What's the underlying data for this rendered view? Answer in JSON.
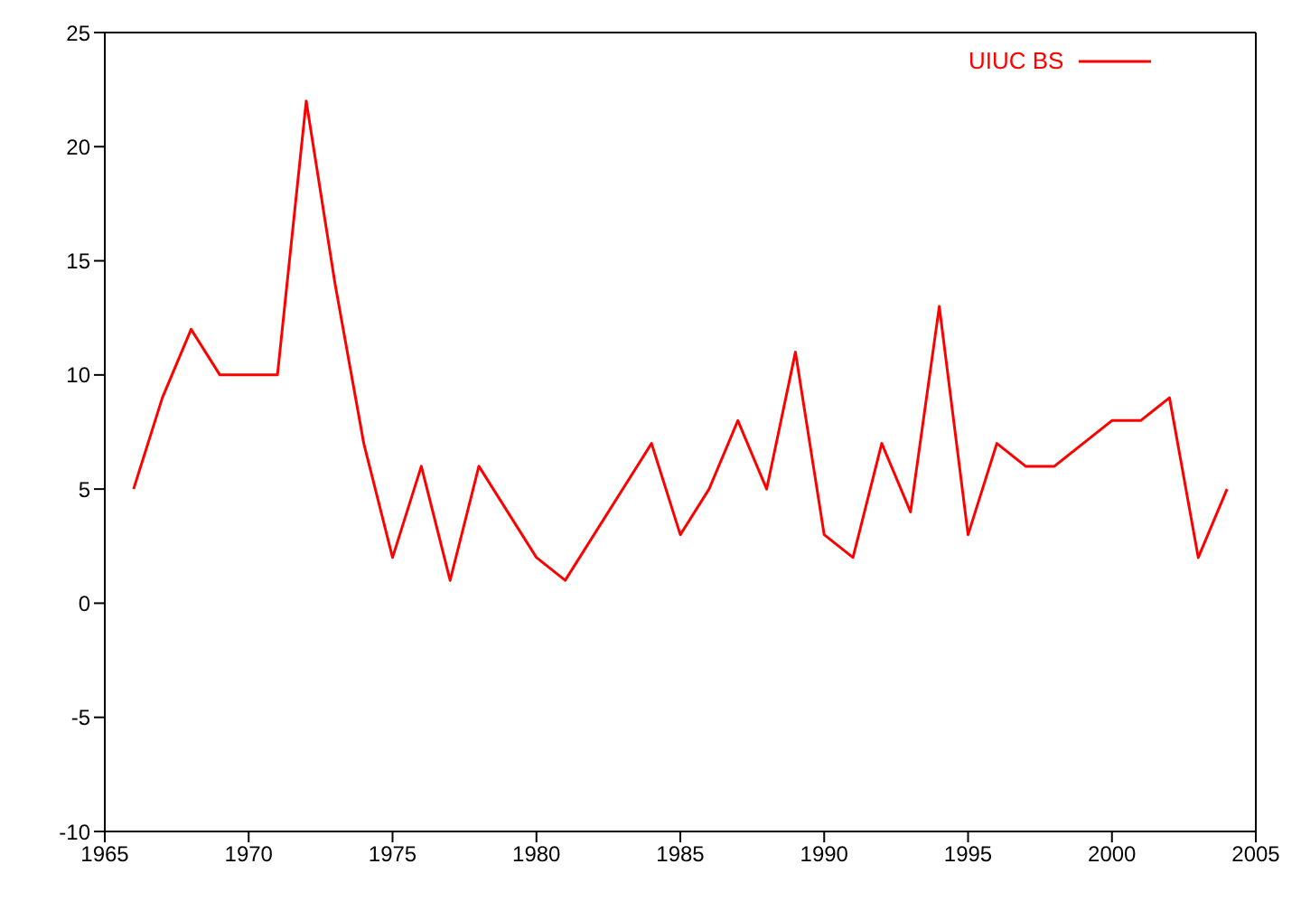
{
  "chart_data": {
    "type": "line",
    "x": [
      1966,
      1967,
      1968,
      1969,
      1970,
      1971,
      1972,
      1973,
      1974,
      1975,
      1976,
      1977,
      1978,
      1980,
      1981,
      1984,
      1985,
      1986,
      1987,
      1988,
      1989,
      1990,
      1991,
      1992,
      1993,
      1994,
      1995,
      1996,
      1997,
      1998,
      2000,
      2001,
      2002,
      2003,
      2004
    ],
    "series": [
      {
        "name": "UIUC BS",
        "color": "#ff0000",
        "values": [
          5,
          9,
          12,
          10,
          10,
          10,
          22,
          14,
          7,
          2,
          6,
          1,
          6,
          2,
          1,
          7,
          3,
          5,
          8,
          5,
          11,
          3,
          2,
          7,
          4,
          13,
          3,
          7,
          6,
          6,
          8,
          8,
          9,
          2,
          5
        ]
      }
    ],
    "xlim": [
      1965,
      2005
    ],
    "xticks": [
      1965,
      1970,
      1975,
      1980,
      1985,
      1990,
      1995,
      2000,
      2005
    ],
    "ylim": [
      -10,
      25
    ],
    "yticks": [
      -10,
      -5,
      0,
      5,
      10,
      15,
      20,
      25
    ],
    "grid": false,
    "legend": "top right",
    "marker": "none",
    "line_style": "solid"
  }
}
